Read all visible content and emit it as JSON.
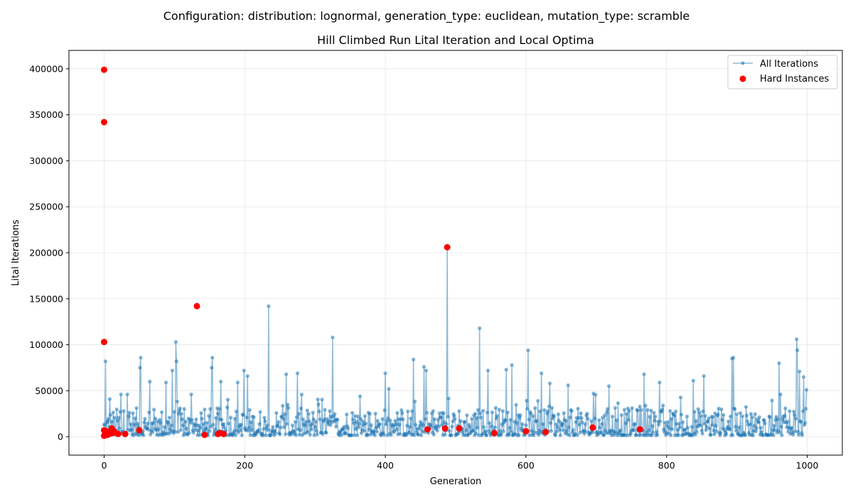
{
  "suptitle": "Configuration: distribution: lognormal, generation_type: euclidean, mutation_type: scramble",
  "chart_data": {
    "type": "line",
    "title": "Hill Climbed Run Lital Iteration and Local Optima",
    "xlabel": "Generation",
    "ylabel": "Lital Iterations",
    "xlim": [
      -50,
      1050
    ],
    "ylim": [
      -20000,
      420000
    ],
    "xticks": [
      0,
      200,
      400,
      600,
      800,
      1000
    ],
    "yticks": [
      0,
      50000,
      100000,
      150000,
      200000,
      250000,
      300000,
      350000,
      400000
    ],
    "grid": true,
    "legend_position": "top-right",
    "colors": {
      "all_iterations": "#1f77b4",
      "hard_instances": "#ff0000"
    },
    "series": [
      {
        "name": "All Iterations",
        "style": "line-with-markers",
        "notable_points": [
          {
            "x": 2,
            "y": 82000
          },
          {
            "x": 8,
            "y": 41000
          },
          {
            "x": 24,
            "y": 46000
          },
          {
            "x": 33,
            "y": 46000
          },
          {
            "x": 51,
            "y": 75000
          },
          {
            "x": 52,
            "y": 86000
          },
          {
            "x": 65,
            "y": 60000
          },
          {
            "x": 88,
            "y": 59000
          },
          {
            "x": 97,
            "y": 72000
          },
          {
            "x": 102,
            "y": 103000
          },
          {
            "x": 103,
            "y": 82000
          },
          {
            "x": 124,
            "y": 46000
          },
          {
            "x": 153,
            "y": 75000
          },
          {
            "x": 154,
            "y": 86000
          },
          {
            "x": 166,
            "y": 60000
          },
          {
            "x": 190,
            "y": 59000
          },
          {
            "x": 199,
            "y": 72000
          },
          {
            "x": 204,
            "y": 66000
          },
          {
            "x": 234,
            "y": 142000
          },
          {
            "x": 259,
            "y": 68000
          },
          {
            "x": 275,
            "y": 69000
          },
          {
            "x": 325,
            "y": 108000
          },
          {
            "x": 364,
            "y": 44000
          },
          {
            "x": 400,
            "y": 69000
          },
          {
            "x": 405,
            "y": 52000
          },
          {
            "x": 440,
            "y": 84000
          },
          {
            "x": 455,
            "y": 76000
          },
          {
            "x": 458,
            "y": 72000
          },
          {
            "x": 488,
            "y": 206000
          },
          {
            "x": 534,
            "y": 118000
          },
          {
            "x": 546,
            "y": 72000
          },
          {
            "x": 572,
            "y": 73000
          },
          {
            "x": 580,
            "y": 78000
          },
          {
            "x": 603,
            "y": 94000
          },
          {
            "x": 622,
            "y": 69000
          },
          {
            "x": 634,
            "y": 58000
          },
          {
            "x": 660,
            "y": 56000
          },
          {
            "x": 696,
            "y": 47000
          },
          {
            "x": 718,
            "y": 55000
          },
          {
            "x": 768,
            "y": 68000
          },
          {
            "x": 790,
            "y": 59000
          },
          {
            "x": 838,
            "y": 61000
          },
          {
            "x": 853,
            "y": 66000
          },
          {
            "x": 893,
            "y": 85000
          },
          {
            "x": 895,
            "y": 86000
          },
          {
            "x": 960,
            "y": 80000
          },
          {
            "x": 985,
            "y": 106000
          },
          {
            "x": 986,
            "y": 94000
          },
          {
            "x": 989,
            "y": 71000
          },
          {
            "x": 995,
            "y": 65000
          },
          {
            "x": 999,
            "y": 51000
          }
        ]
      },
      {
        "name": "Hard Instances",
        "style": "scatter",
        "points": [
          {
            "x": 0,
            "y": 399000
          },
          {
            "x": 0,
            "y": 342000
          },
          {
            "x": 0,
            "y": 103000
          },
          {
            "x": 0,
            "y": 1000
          },
          {
            "x": 0,
            "y": 7000
          },
          {
            "x": 2,
            "y": 4000
          },
          {
            "x": 3,
            "y": 6000
          },
          {
            "x": 5,
            "y": 2000
          },
          {
            "x": 7,
            "y": 3000
          },
          {
            "x": 9,
            "y": 5000
          },
          {
            "x": 10,
            "y": 7000
          },
          {
            "x": 11,
            "y": 9000
          },
          {
            "x": 12,
            "y": 4000
          },
          {
            "x": 14,
            "y": 6000
          },
          {
            "x": 20,
            "y": 3000
          },
          {
            "x": 30,
            "y": 3000
          },
          {
            "x": 50,
            "y": 7000
          },
          {
            "x": 132,
            "y": 142000
          },
          {
            "x": 143,
            "y": 2000
          },
          {
            "x": 162,
            "y": 3000
          },
          {
            "x": 165,
            "y": 4000
          },
          {
            "x": 170,
            "y": 3000
          },
          {
            "x": 460,
            "y": 8000
          },
          {
            "x": 485,
            "y": 9000
          },
          {
            "x": 488,
            "y": 206000
          },
          {
            "x": 505,
            "y": 9000
          },
          {
            "x": 555,
            "y": 4000
          },
          {
            "x": 600,
            "y": 6000
          },
          {
            "x": 628,
            "y": 5000
          },
          {
            "x": 695,
            "y": 10000
          },
          {
            "x": 762,
            "y": 8000
          }
        ]
      }
    ]
  }
}
